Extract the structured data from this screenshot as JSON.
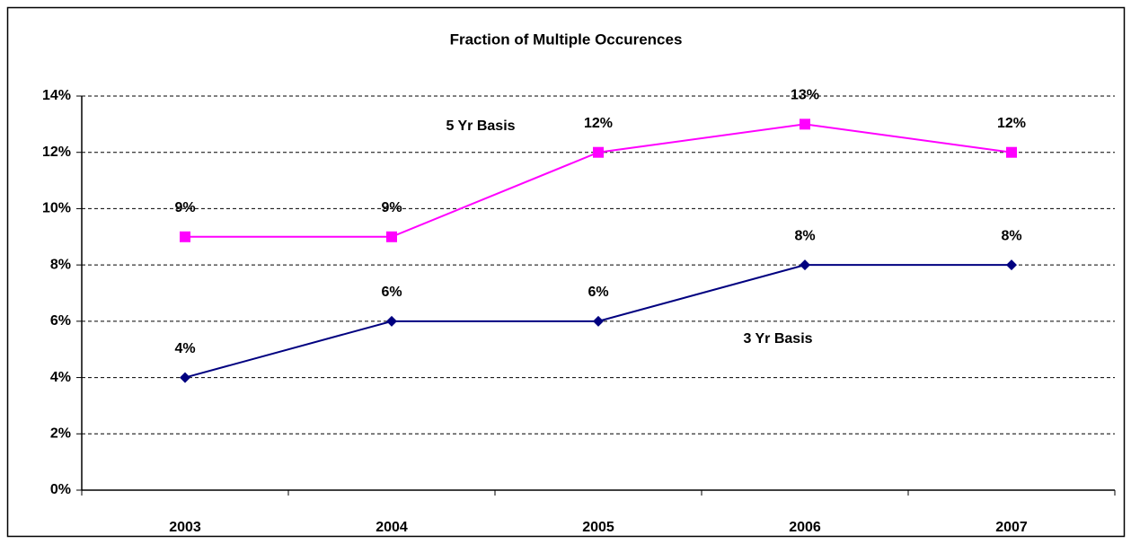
{
  "chart_data": {
    "type": "line",
    "title": "Fraction of Multiple Occurences",
    "categories": [
      "2003",
      "2004",
      "2005",
      "2006",
      "2007"
    ],
    "series": [
      {
        "name": "5 Yr Basis",
        "color": "#ff00ff",
        "marker": "square",
        "values": [
          9,
          9,
          12,
          13,
          12
        ],
        "value_labels": [
          "9%",
          "9%",
          "12%",
          "13%",
          "12%"
        ]
      },
      {
        "name": "3 Yr Basis",
        "color": "#000080",
        "marker": "diamond",
        "values": [
          4,
          6,
          6,
          8,
          8
        ],
        "value_labels": [
          "4%",
          "6%",
          "6%",
          "8%",
          "8%"
        ]
      }
    ],
    "ylim": [
      0,
      14
    ],
    "yticks": [
      {
        "value": 0,
        "label": "0%"
      },
      {
        "value": 2,
        "label": "2%"
      },
      {
        "value": 4,
        "label": "4%"
      },
      {
        "value": 6,
        "label": "6%"
      },
      {
        "value": 8,
        "label": "8%"
      },
      {
        "value": 10,
        "label": "10%"
      },
      {
        "value": 12,
        "label": "12%"
      },
      {
        "value": 14,
        "label": "14%"
      }
    ],
    "grid": true
  }
}
